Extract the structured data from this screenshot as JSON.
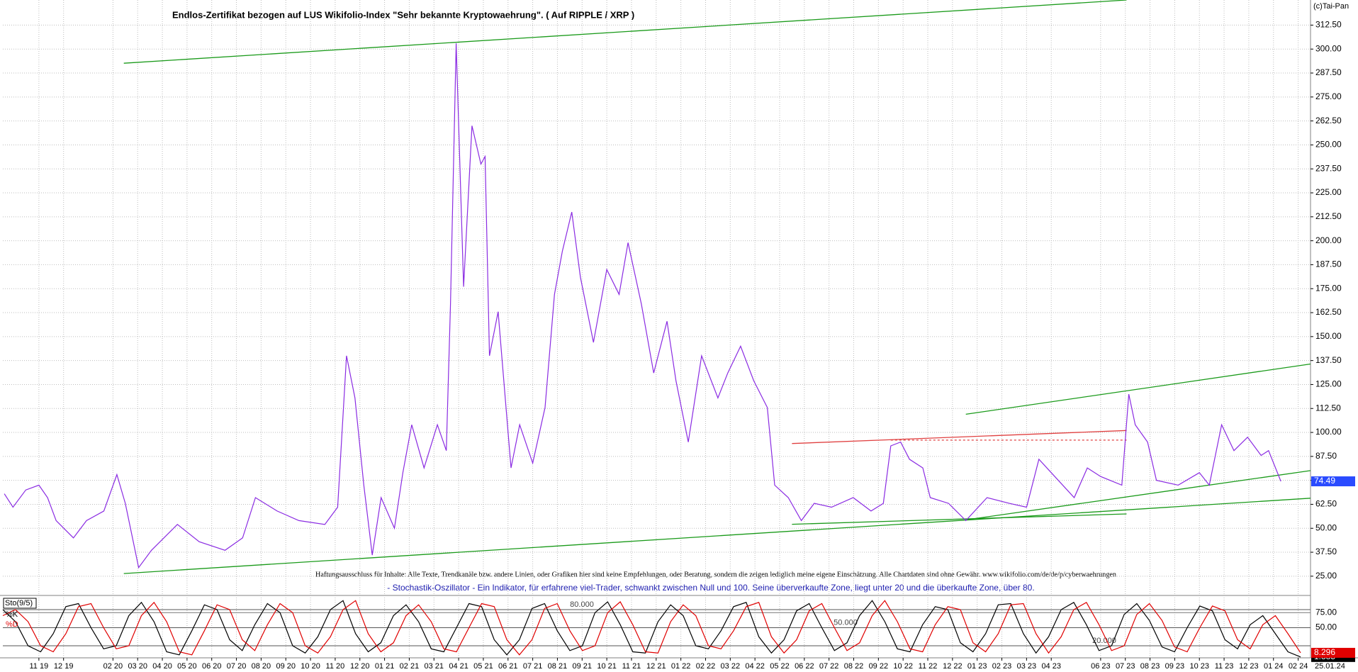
{
  "chart_data": [
    {
      "type": "line",
      "title": "Endlos-Zertifikat bezogen auf LUS Wikifolio-Index \"Sehr bekannte Kryptowaehrung\". ( Auf RIPPLE / XRP )",
      "copyright": "(c)Tai-Pan",
      "disclaimer": "Haftungsausschluss für Inhalte: Alle Texte, Trendkanäle bzw. andere Linien, oder Grafiken hier sind keine Empfehlungen, oder Beratung, sondern die zeigen lediglich meine eigene Einschätzung. Alle Chartdaten sind ohne Gewähr. www.wikifolio.com/de/de/p/cyberwaehrungen",
      "x": [
        -1.4,
        -1.05,
        -0.53,
        0,
        0.35,
        0.7,
        1.4,
        1.93,
        2.63,
        3.16,
        3.5,
        4.04,
        4.56,
        5.61,
        6.49,
        7.54,
        8.25,
        8.77,
        9.65,
        10.53,
        11.58,
        12.1,
        12.46,
        12.8,
        13.16,
        13.5,
        13.86,
        14.4,
        14.74,
        15.1,
        15.6,
        16.14,
        16.5,
        16.67,
        16.9,
        17.2,
        17.54,
        17.9,
        18.07,
        18.25,
        18.6,
        18.77,
        19.12,
        19.47,
        20.0,
        20.5,
        20.88,
        21.2,
        21.58,
        21.93,
        22.46,
        23,
        23.5,
        23.86,
        24.4,
        24.9,
        25.44,
        25.8,
        26.3,
        26.84,
        27.5,
        27.9,
        28.42,
        28.95,
        29.5,
        29.8,
        30.35,
        30.88,
        31.4,
        32.1,
        32.98,
        33.7,
        34.2,
        34.5,
        34.9,
        35.26,
        35.8,
        36.1,
        36.84,
        37.54,
        38.4,
        39.3,
        40,
        40.5,
        41,
        41.93,
        42.46,
        43,
        43.86,
        44.14,
        44.4,
        44.9,
        45.26,
        46.14,
        47,
        47.4,
        47.9,
        48.4,
        48.95,
        49.5,
        49.8,
        50.3
      ],
      "series": [
        {
          "color": "#8a2be2",
          "values": [
            68,
            61,
            70,
            72.5,
            66,
            54,
            45,
            54,
            59,
            78,
            63,
            29.5,
            38.5,
            52,
            43,
            38.5,
            45,
            66,
            59,
            54,
            52,
            61,
            140,
            118,
            72.5,
            36,
            66,
            50,
            79,
            104,
            81.5,
            104,
            90.5,
            167,
            303,
            176,
            260,
            240,
            244,
            140,
            163,
            136,
            81.5,
            104,
            84,
            113,
            172,
            194.5,
            215,
            181,
            147,
            185,
            172,
            199,
            167,
            131,
            158,
            127,
            95,
            140,
            118,
            131,
            145,
            127,
            113,
            72.5,
            66,
            54,
            63,
            61,
            66,
            59,
            63,
            93,
            95,
            86,
            81.5,
            66,
            63,
            54,
            66,
            63,
            61,
            86,
            79,
            66,
            81.5,
            77,
            72.5,
            120,
            104,
            95,
            75,
            72.5,
            79,
            72.5,
            104,
            90.5,
            97.5,
            88,
            90.5,
            74.49
          ]
        }
      ],
      "trend_lines": [
        {
          "color": "#1a9a1a",
          "x": [
            3.44,
            44.05
          ],
          "values": [
            292.6,
            325.6
          ]
        },
        {
          "color": "#1a9a1a",
          "x": [
            3.44,
            51.5
          ],
          "values": [
            26.4,
            65.7
          ]
        },
        {
          "color": "#1a9a1a",
          "x": [
            37.54,
            51.5
          ],
          "values": [
            109.5,
            135.7
          ]
        },
        {
          "color": "#1a9a1a",
          "x": [
            37.54,
            51.5
          ],
          "values": [
            54.4,
            80.1
          ]
        },
        {
          "color": "#1a9a1a",
          "x": [
            30.5,
            44.05
          ],
          "values": [
            52.1,
            57.5
          ]
        },
        {
          "color": "#e04040",
          "x": [
            30.5,
            44.05
          ],
          "values": [
            94.2,
            101
          ]
        },
        {
          "color": "#e04040",
          "x": [
            34.5,
            44.05
          ],
          "values": [
            96,
            96
          ],
          "style": "dashed"
        }
      ],
      "xlim": [
        -1.46,
        51.5
      ],
      "ylim": [
        15.7,
        325.6
      ],
      "yticks": [
        {
          "value": 25,
          "label": "25.00"
        },
        {
          "value": 37.5,
          "label": "37.50"
        },
        {
          "value": 50,
          "label": "50.00"
        },
        {
          "value": 62.5,
          "label": "62.50"
        },
        {
          "value": 75,
          "label": "75.00"
        },
        {
          "value": 87.5,
          "label": "87.50"
        },
        {
          "value": 100,
          "label": "100.00"
        },
        {
          "value": 112.5,
          "label": "112.50"
        },
        {
          "value": 125,
          "label": "125.00"
        },
        {
          "value": 137.5,
          "label": "137.50"
        },
        {
          "value": 150,
          "label": "150.00"
        },
        {
          "value": 162.5,
          "label": "162.50"
        },
        {
          "value": 175,
          "label": "175.00"
        },
        {
          "value": 187.5,
          "label": "187.50"
        },
        {
          "value": 200,
          "label": "200.00"
        },
        {
          "value": 212.5,
          "label": "212.50"
        },
        {
          "value": 225,
          "label": "225.00"
        },
        {
          "value": 237.5,
          "label": "237.50"
        },
        {
          "value": 250,
          "label": "250.00"
        },
        {
          "value": 262.5,
          "label": "262.50"
        },
        {
          "value": 275,
          "label": "275.00"
        },
        {
          "value": 287.5,
          "label": "287.50"
        },
        {
          "value": 300,
          "label": "300.00"
        },
        {
          "value": 312.5,
          "label": "312.50"
        }
      ],
      "grid": true
    },
    {
      "type": "line",
      "title": "Sto(9/5)",
      "note": "- Stochastik-Oszillator - Ein Indikator, für erfahrene viel-Trader, schwankt zwischen Null und 100. Seine überverkaufte Zone, liegt unter 20 und die überkaufte Zone, über 80.",
      "date": "25.01.24",
      "series": [
        {
          "name": "%K",
          "color": "#000000",
          "values": [
            80,
            60,
            20,
            10,
            40,
            85,
            90,
            50,
            15,
            20,
            70,
            92,
            60,
            10,
            5,
            45,
            88,
            80,
            30,
            12,
            55,
            90,
            75,
            20,
            8,
            35,
            80,
            95,
            40,
            10,
            25,
            70,
            88,
            60,
            15,
            10,
            50,
            90,
            85,
            30,
            5,
            30,
            82,
            90,
            45,
            12,
            20,
            75,
            93,
            55,
            10,
            8,
            60,
            88,
            70,
            20,
            15,
            45,
            85,
            92,
            35,
            8,
            30,
            78,
            90,
            50,
            12,
            25,
            70,
            95,
            60,
            15,
            10,
            55,
            85,
            80,
            25,
            10,
            40,
            88,
            90,
            40,
            8,
            35,
            80,
            92,
            55,
            12,
            20,
            72,
            90,
            62,
            18,
            10,
            50,
            86,
            78,
            30,
            15,
            55,
            70,
            40,
            10,
            1.385
          ]
        },
        {
          "name": "%D",
          "color": "#e00000",
          "values": [
            70,
            80,
            60,
            20,
            10,
            40,
            85,
            90,
            50,
            15,
            20,
            70,
            92,
            60,
            10,
            5,
            45,
            88,
            80,
            30,
            12,
            55,
            90,
            75,
            20,
            8,
            35,
            80,
            95,
            40,
            10,
            25,
            70,
            88,
            60,
            15,
            10,
            50,
            90,
            85,
            30,
            5,
            30,
            82,
            90,
            45,
            12,
            20,
            75,
            93,
            55,
            10,
            8,
            60,
            88,
            70,
            20,
            15,
            45,
            85,
            92,
            35,
            8,
            30,
            78,
            90,
            50,
            12,
            25,
            70,
            95,
            60,
            15,
            10,
            55,
            85,
            80,
            25,
            10,
            40,
            88,
            90,
            40,
            8,
            35,
            80,
            92,
            55,
            12,
            20,
            72,
            90,
            62,
            18,
            10,
            50,
            86,
            78,
            30,
            15,
            55,
            70,
            40,
            8.296
          ]
        }
      ],
      "levels": [
        {
          "value": 80,
          "label": "80.000"
        },
        {
          "value": 50,
          "label": "50.000"
        },
        {
          "value": 20,
          "label": "20.000"
        }
      ],
      "ylim": [
        0,
        100
      ],
      "yticks": [
        {
          "value": 75,
          "label": "75.00"
        },
        {
          "value": 50,
          "label": "50.00"
        }
      ],
      "xlim": [
        -1.46,
        51.5
      ],
      "xticks": [
        {
          "value": 0,
          "label": "11 19"
        },
        {
          "value": 1,
          "label": "12 19"
        },
        {
          "value": 3,
          "label": "02 20"
        },
        {
          "value": 4,
          "label": "03 20"
        },
        {
          "value": 5,
          "label": "04 20"
        },
        {
          "value": 6,
          "label": "05 20"
        },
        {
          "value": 7,
          "label": "06 20"
        },
        {
          "value": 8,
          "label": "07 20"
        },
        {
          "value": 9,
          "label": "08 20"
        },
        {
          "value": 10,
          "label": "09 20"
        },
        {
          "value": 11,
          "label": "10 20"
        },
        {
          "value": 12,
          "label": "11 20"
        },
        {
          "value": 13,
          "label": "12 20"
        },
        {
          "value": 14,
          "label": "01 21"
        },
        {
          "value": 15,
          "label": "02 21"
        },
        {
          "value": 16,
          "label": "03 21"
        },
        {
          "value": 17,
          "label": "04 21"
        },
        {
          "value": 18,
          "label": "05 21"
        },
        {
          "value": 19,
          "label": "06 21"
        },
        {
          "value": 20,
          "label": "07 21"
        },
        {
          "value": 21,
          "label": "08 21"
        },
        {
          "value": 22,
          "label": "09 21"
        },
        {
          "value": 23,
          "label": "10 21"
        },
        {
          "value": 24,
          "label": "11 21"
        },
        {
          "value": 25,
          "label": "12 21"
        },
        {
          "value": 26,
          "label": "01 22"
        },
        {
          "value": 27,
          "label": "02 22"
        },
        {
          "value": 28,
          "label": "03 22"
        },
        {
          "value": 29,
          "label": "04 22"
        },
        {
          "value": 30,
          "label": "05 22"
        },
        {
          "value": 31,
          "label": "06 22"
        },
        {
          "value": 32,
          "label": "07 22"
        },
        {
          "value": 33,
          "label": "08 22"
        },
        {
          "value": 34,
          "label": "09 22"
        },
        {
          "value": 35,
          "label": "10 22"
        },
        {
          "value": 36,
          "label": "11 22"
        },
        {
          "value": 37,
          "label": "12 22"
        },
        {
          "value": 38,
          "label": "01 23"
        },
        {
          "value": 39,
          "label": "02 23"
        },
        {
          "value": 40,
          "label": "03 23"
        },
        {
          "value": 41,
          "label": "04 23"
        },
        {
          "value": 43,
          "label": "06 23"
        },
        {
          "value": 44,
          "label": "07 23"
        },
        {
          "value": 45,
          "label": "08 23"
        },
        {
          "value": 46,
          "label": "09 23"
        },
        {
          "value": 47,
          "label": "10 23"
        },
        {
          "value": 48,
          "label": "11 23"
        },
        {
          "value": 49,
          "label": "12 23"
        },
        {
          "value": 50,
          "label": "01 24"
        },
        {
          "value": 51,
          "label": "02 24"
        }
      ]
    }
  ]
}
